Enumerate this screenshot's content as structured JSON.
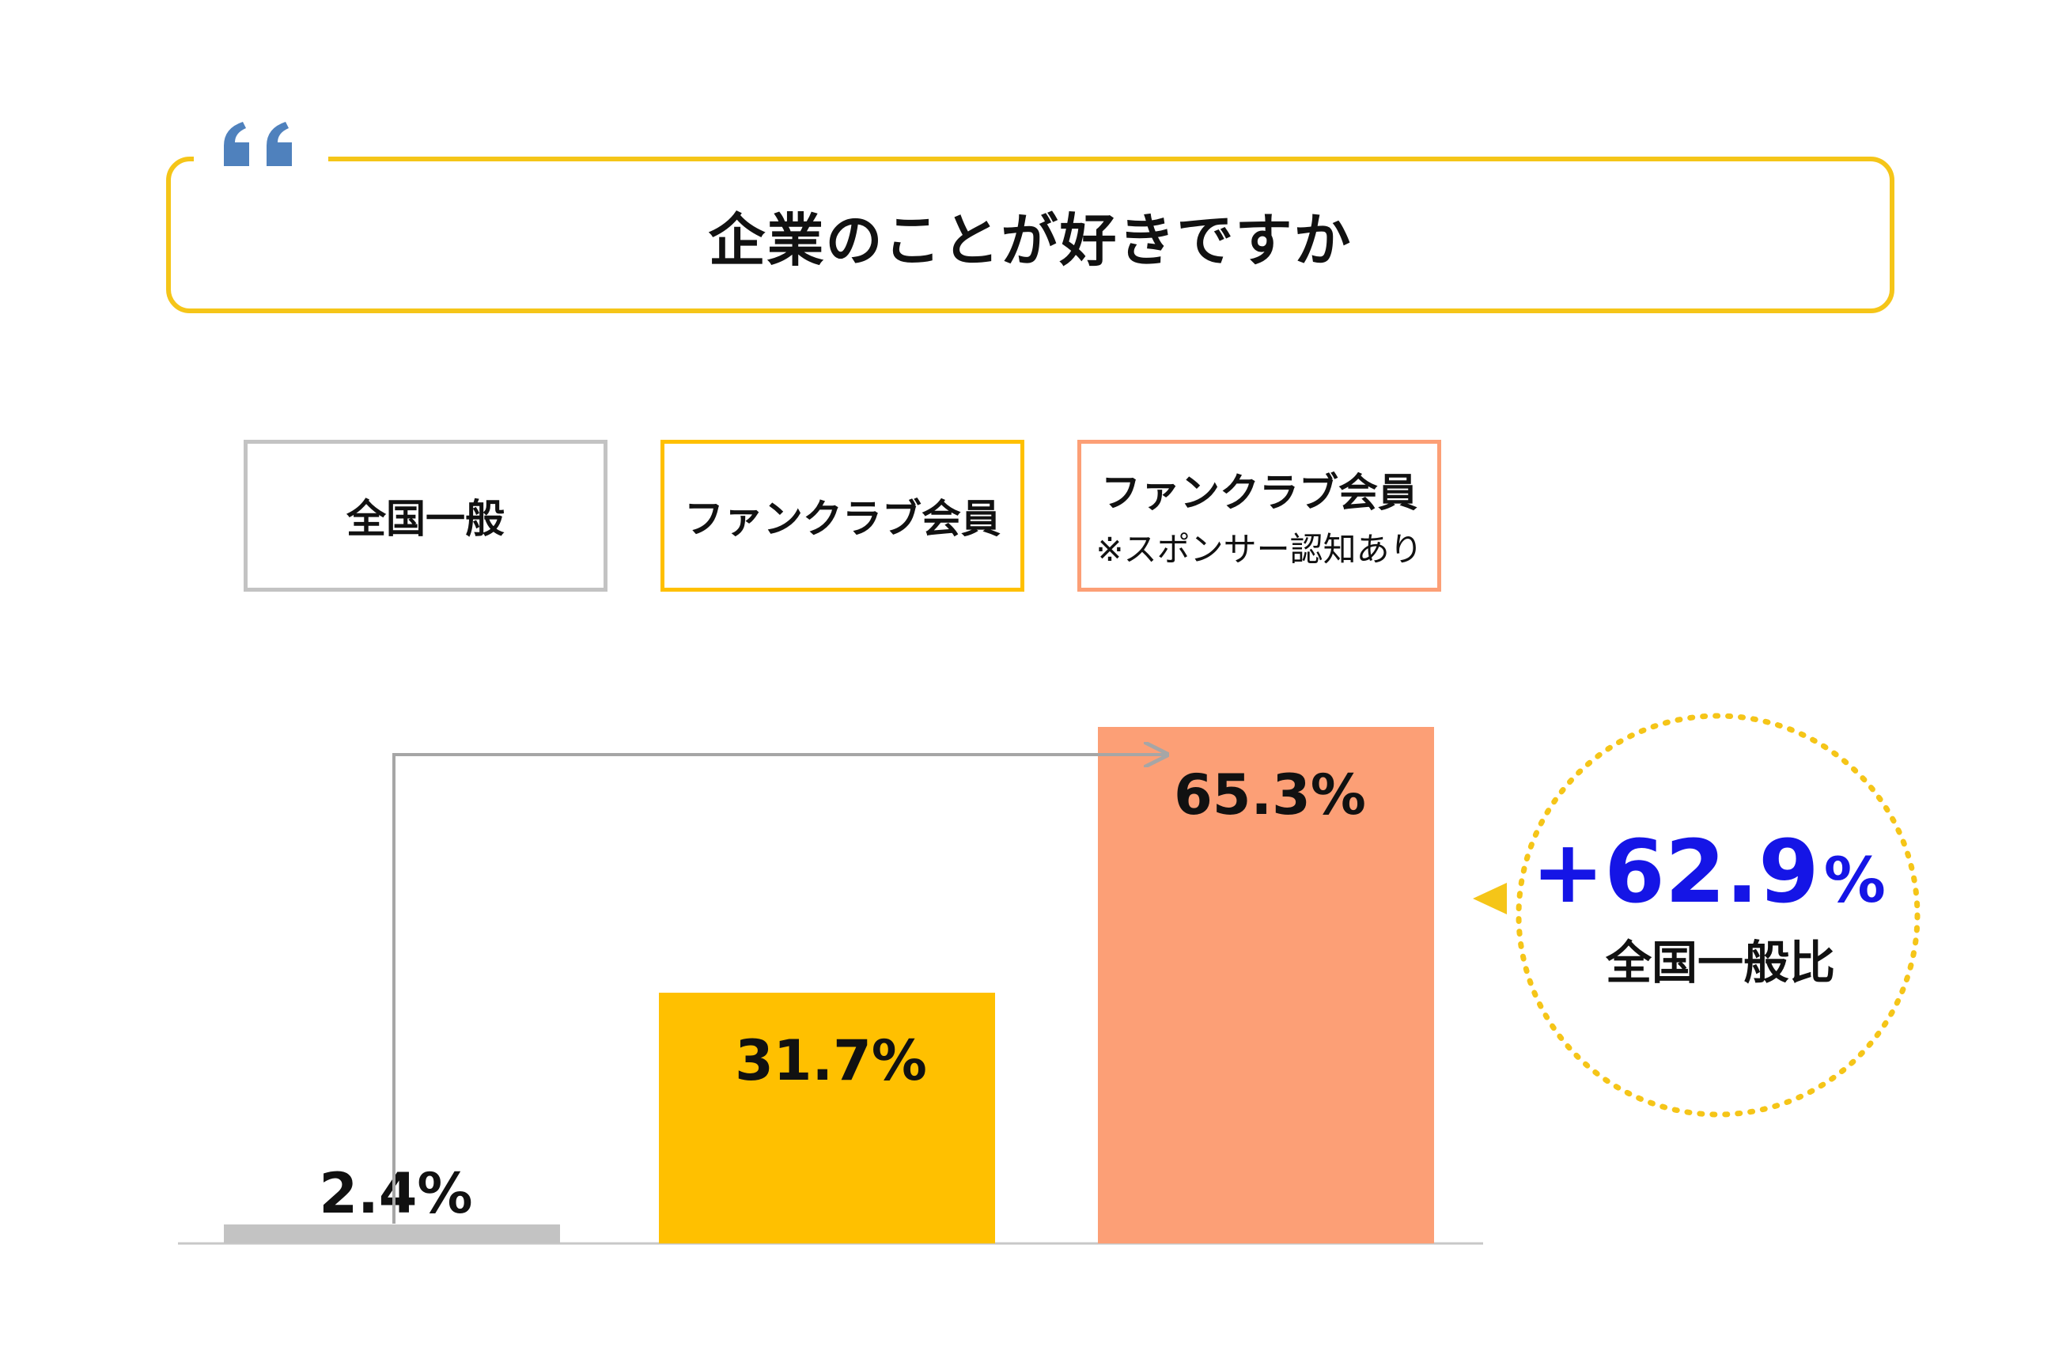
{
  "question": "企業のことが好きですか",
  "legend": [
    {
      "label": "全国一般",
      "sub": "",
      "border_color": "#c3c3c3"
    },
    {
      "label": "ファンクラブ会員",
      "sub": "",
      "border_color": "#ffc000"
    },
    {
      "label": "ファンクラブ会員",
      "sub": "※スポンサー認知あり",
      "border_color": "#fc9f76"
    }
  ],
  "chart_data": {
    "type": "bar",
    "categories": [
      "全国一般",
      "ファンクラブ会員",
      "ファンクラブ会員 ※スポンサー認知あり"
    ],
    "values": [
      2.4,
      31.7,
      65.3
    ],
    "value_labels": [
      "2.4%",
      "31.7%",
      "65.3%"
    ],
    "colors": [
      "#c3c3c3",
      "#ffc000",
      "#fc9f76"
    ],
    "ylim": [
      0,
      70
    ],
    "grid": false,
    "legend_placement": "top",
    "annotation": {
      "value": "+62.9",
      "unit": "%",
      "label": "全国一般比",
      "value_color": "#1515e6",
      "border_color": "#f5c518"
    }
  }
}
